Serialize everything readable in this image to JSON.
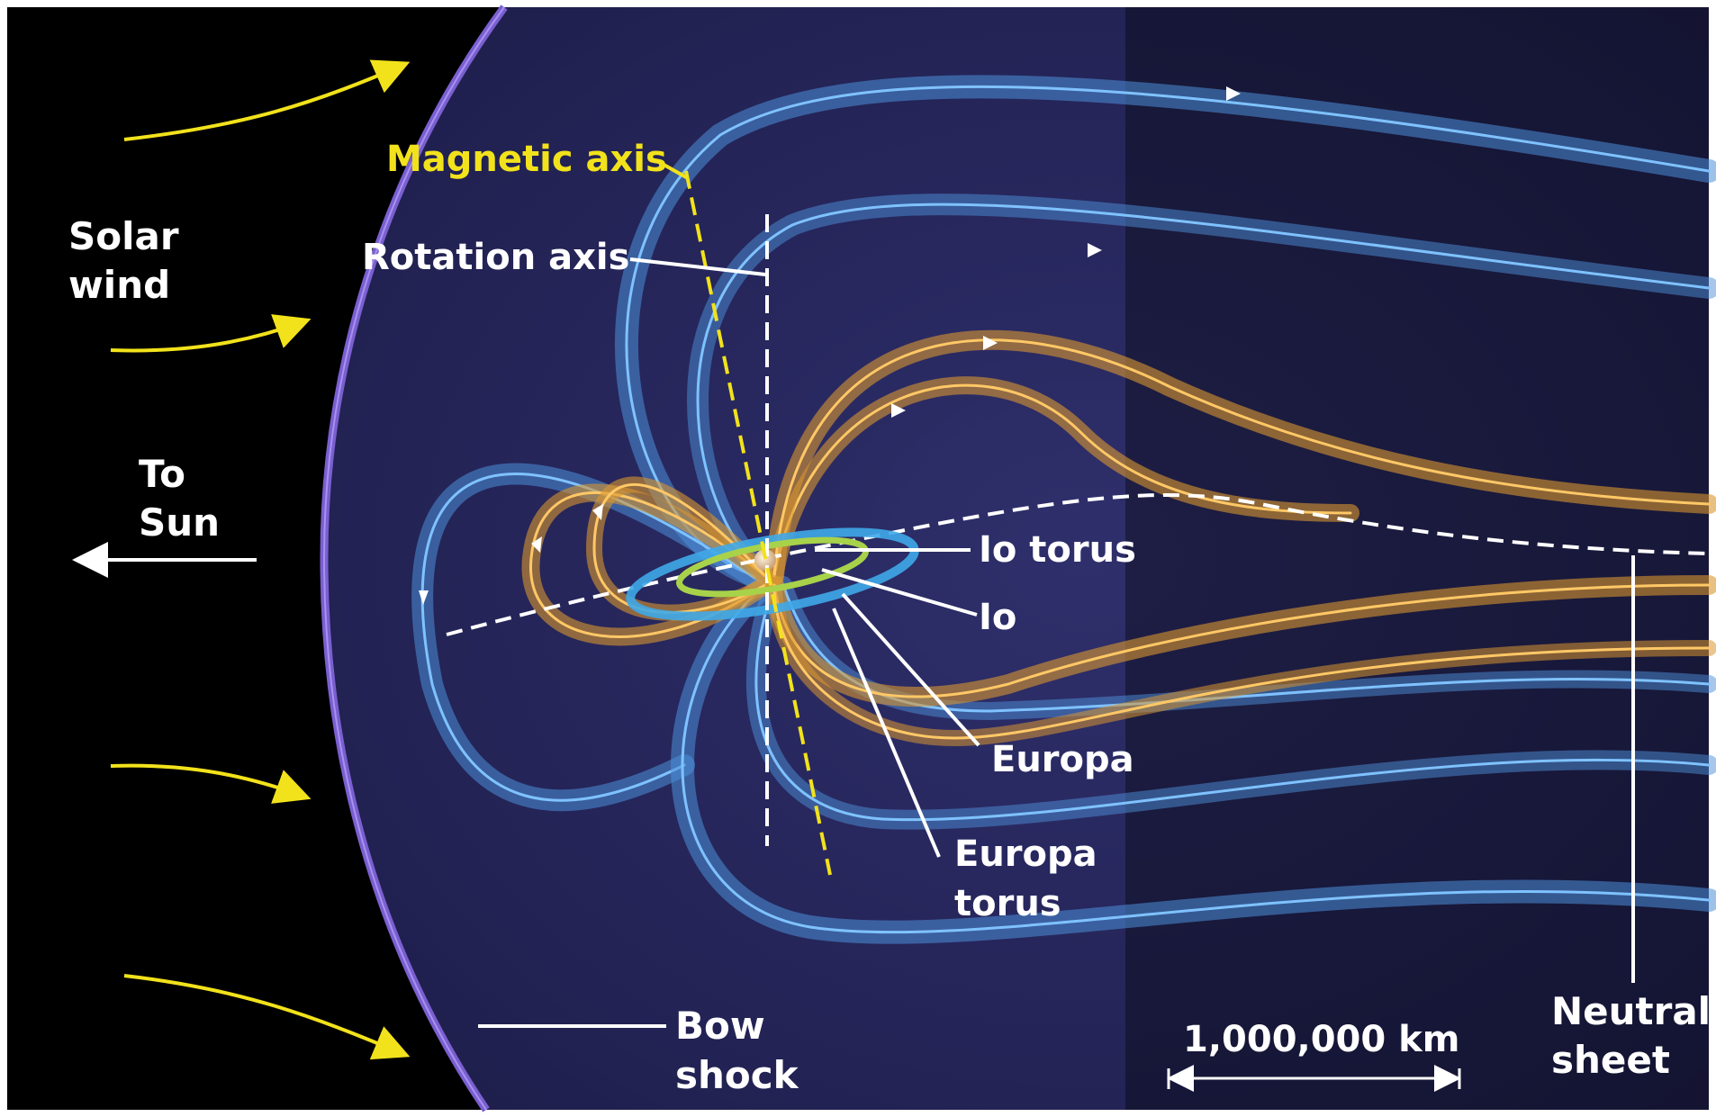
{
  "labels": {
    "solar_wind_1": "Solar",
    "solar_wind_2": "wind",
    "to_sun_1": "To",
    "to_sun_2": "Sun",
    "magnetic_axis": "Magnetic axis",
    "rotation_axis": "Rotation axis",
    "io_torus": "Io torus",
    "io": "Io",
    "europa": "Europa",
    "europa_torus_1": "Europa",
    "europa_torus_2": "torus",
    "bow_shock_1": "Bow",
    "bow_shock_2": "shock",
    "scale": "1,000,000 km",
    "neutral_sheet_1": "Neutral",
    "neutral_sheet_2": "sheet"
  },
  "colors": {
    "space": "#000000",
    "magnetosheath": "#2a2a62",
    "bow_shock": "#7a5fd0",
    "field_outer": "#4d8fd8",
    "field_inner": "#d9962f",
    "solar_wind_arrow": "#f2e21b",
    "magnetic_axis": "#f2e21b",
    "labels": "#ffffff",
    "io_torus": "#a8d24a",
    "europa_torus": "#3fa9e8"
  }
}
